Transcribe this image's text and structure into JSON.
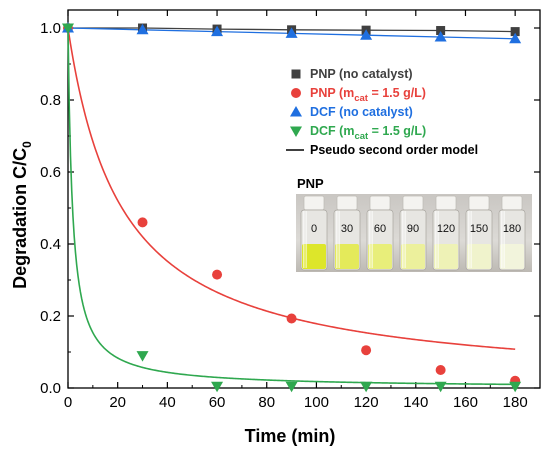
{
  "chart_data": {
    "type": "scatter",
    "xlabel": "Time (min)",
    "ylabel": "Degradation C/C",
    "ylabel_sub": "0",
    "xlim": [
      0,
      190
    ],
    "ylim": [
      0,
      1.05
    ],
    "xticks": [
      0,
      20,
      40,
      60,
      80,
      100,
      120,
      140,
      160,
      180
    ],
    "yticks": [
      0.0,
      0.2,
      0.4,
      0.6,
      0.8,
      1.0
    ],
    "ytick_labels": [
      "0.0",
      "0.2",
      "0.4",
      "0.6",
      "0.8",
      "1.0"
    ],
    "legend_position": "top-right",
    "series": [
      {
        "name": "PNP (no catalyst)",
        "marker": "square",
        "color": "#404040",
        "line": true,
        "x": [
          0,
          30,
          60,
          90,
          120,
          150,
          180
        ],
        "y": [
          1.0,
          1.0,
          0.997,
          0.995,
          0.994,
          0.993,
          0.99
        ]
      },
      {
        "name": "PNP (m",
        "name_sub": "cat",
        "name_tail": " = 1.5 g/L)",
        "marker": "circle",
        "color": "#e8413c",
        "line": false,
        "x": [
          0,
          30,
          60,
          90,
          120,
          150,
          180
        ],
        "y": [
          1.0,
          0.46,
          0.315,
          0.193,
          0.105,
          0.05,
          0.02
        ]
      },
      {
        "name": "DCF (no catalyst)",
        "marker": "triangle-up",
        "color": "#1f6fe0",
        "line": true,
        "x": [
          0,
          30,
          60,
          90,
          120,
          150,
          180
        ],
        "y": [
          1.0,
          0.995,
          0.99,
          0.985,
          0.98,
          0.975,
          0.97
        ]
      },
      {
        "name": "DCF (m",
        "name_sub": "cat",
        "name_tail": " = 1.5 g/L)",
        "marker": "triangle-down",
        "color": "#2fa84f",
        "line": false,
        "x": [
          0,
          30,
          60,
          90,
          120,
          150,
          180
        ],
        "y": [
          1.0,
          0.09,
          0.005,
          0.005,
          0.005,
          0.005,
          0.005
        ]
      }
    ],
    "models": [
      {
        "name": "Pseudo second order model",
        "color": "#e8413c",
        "k": 0.046
      },
      {
        "color": "#2fa84f",
        "k": 0.55
      }
    ],
    "model_legend_color": "#000000",
    "inset": {
      "title": "PNP",
      "vials": [
        "0",
        "30",
        "60",
        "90",
        "120",
        "150",
        "180"
      ],
      "liquid_colors": [
        "#dde62a",
        "#e4ea5a",
        "#e8ee7a",
        "#ecf09c",
        "#eef2b6",
        "#f0f3cc",
        "#f2f4dc"
      ]
    }
  }
}
